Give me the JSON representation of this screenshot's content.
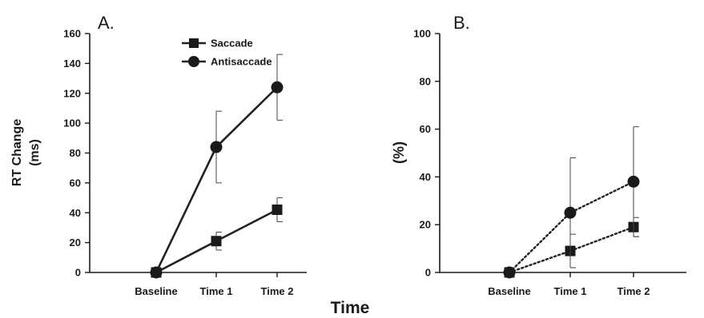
{
  "figure": {
    "shared_xlabel": "Time"
  },
  "chart_data": [
    {
      "type": "line",
      "panel": "A.",
      "title": "",
      "xlabel": "",
      "ylabel": "RT Change (ms)",
      "ylabel_lines": [
        "RT Change",
        "(ms)"
      ],
      "categories": [
        "Baseline",
        "Time 1",
        "Time 2"
      ],
      "ylim": [
        0,
        160
      ],
      "yticks": [
        0,
        20,
        40,
        60,
        80,
        100,
        120,
        140,
        160
      ],
      "grid": false,
      "legend": "top-center",
      "series": [
        {
          "name": "Saccade",
          "marker": "square",
          "line": "solid",
          "values": [
            0,
            21,
            42
          ],
          "error": [
            0,
            6,
            8
          ]
        },
        {
          "name": "Antisaccade",
          "marker": "circle",
          "line": "solid",
          "values": [
            0,
            84,
            124
          ],
          "error": [
            0,
            24,
            22
          ]
        }
      ]
    },
    {
      "type": "line",
      "panel": "B.",
      "title": "",
      "xlabel": "",
      "ylabel": "(%)",
      "ylabel_lines": [
        "(%)"
      ],
      "categories": [
        "Baseline",
        "Time 1",
        "Time 2"
      ],
      "ylim": [
        0,
        100
      ],
      "yticks": [
        0,
        20,
        40,
        60,
        80,
        100
      ],
      "grid": false,
      "legend": "none",
      "series": [
        {
          "name": "Saccade",
          "marker": "square",
          "line": "dotted",
          "values": [
            0,
            9,
            19
          ],
          "error": [
            0,
            7,
            4
          ]
        },
        {
          "name": "Antisaccade",
          "marker": "circle",
          "line": "dotted",
          "values": [
            0,
            25,
            38
          ],
          "error": [
            0,
            23,
            23
          ]
        }
      ]
    }
  ]
}
